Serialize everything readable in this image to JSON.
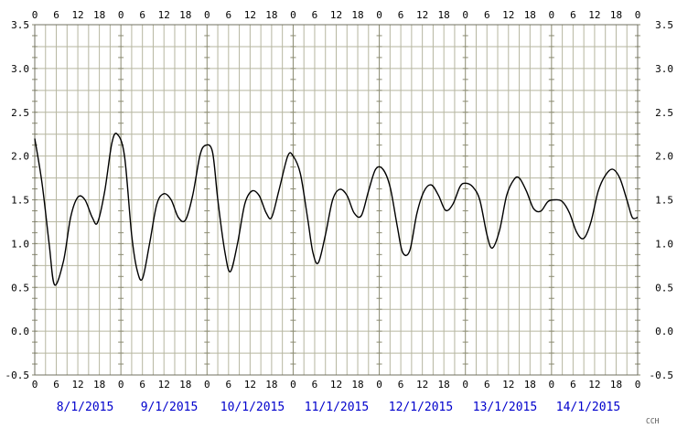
{
  "chart_data": {
    "type": "line",
    "hour_tick_labels": [
      "0",
      "6",
      "12",
      "18"
    ],
    "y_tick_labels": [
      "3.5",
      "3.0",
      "2.5",
      "2.0",
      "1.5",
      "1.0",
      "0.5",
      "0.0",
      "-0.5"
    ],
    "ylim": [
      -0.5,
      3.5
    ],
    "x_range": [
      "2015-01-08T00:00",
      "2015-01-15T00:00"
    ],
    "dates": [
      "8/1/2015",
      "9/1/2015",
      "10/1/2015",
      "11/1/2015",
      "12/1/2015",
      "13/1/2015",
      "14/1/2015"
    ],
    "grid": true,
    "series": [
      {
        "color": "#000000",
        "x": [
          "2015-01-08T00:00",
          "2015-01-08T02:00",
          "2015-01-08T04:00",
          "2015-01-08T05:30",
          "2015-01-08T08:00",
          "2015-01-08T10:00",
          "2015-01-08T12:00",
          "2015-01-08T14:00",
          "2015-01-08T16:00",
          "2015-01-08T17:30",
          "2015-01-08T19:30",
          "2015-01-08T21:30",
          "2015-01-08T23:00",
          "2015-01-09T01:00",
          "2015-01-09T03:00",
          "2015-01-09T04:30",
          "2015-01-09T06:00",
          "2015-01-09T08:00",
          "2015-01-09T10:00",
          "2015-01-09T12:00",
          "2015-01-09T14:00",
          "2015-01-09T16:00",
          "2015-01-09T18:00",
          "2015-01-09T20:00",
          "2015-01-09T22:00",
          "2015-01-09T23:30",
          "2015-01-10T01:30",
          "2015-01-10T03:00",
          "2015-01-10T05:00",
          "2015-01-10T06:30",
          "2015-01-10T08:30",
          "2015-01-10T10:30",
          "2015-01-10T12:30",
          "2015-01-10T14:30",
          "2015-01-10T16:30",
          "2015-01-10T18:00",
          "2015-01-10T20:00",
          "2015-01-10T22:30",
          "2015-01-11T00:00",
          "2015-01-11T02:00",
          "2015-01-11T04:00",
          "2015-01-11T05:30",
          "2015-01-11T07:00",
          "2015-01-11T09:00",
          "2015-01-11T11:00",
          "2015-01-11T13:00",
          "2015-01-11T15:00",
          "2015-01-11T17:00",
          "2015-01-11T19:00",
          "2015-01-11T21:00",
          "2015-01-11T23:00",
          "2015-01-12T01:00",
          "2015-01-12T03:00",
          "2015-01-12T05:00",
          "2015-01-12T06:30",
          "2015-01-12T08:30",
          "2015-01-12T10:30",
          "2015-01-12T12:30",
          "2015-01-12T14:30",
          "2015-01-12T16:30",
          "2015-01-12T18:30",
          "2015-01-12T20:30",
          "2015-01-12T22:30",
          "2015-01-13T00:00",
          "2015-01-13T02:00",
          "2015-01-13T04:00",
          "2015-01-13T06:00",
          "2015-01-13T07:30",
          "2015-01-13T09:30",
          "2015-01-13T11:30",
          "2015-01-13T13:30",
          "2015-01-13T15:00",
          "2015-01-13T17:00",
          "2015-01-13T19:00",
          "2015-01-13T21:00",
          "2015-01-13T23:00",
          "2015-01-14T01:00",
          "2015-01-14T03:00",
          "2015-01-14T05:00",
          "2015-01-14T07:00",
          "2015-01-14T09:00",
          "2015-01-14T11:00",
          "2015-01-14T13:00",
          "2015-01-14T15:00",
          "2015-01-14T17:00",
          "2015-01-14T19:00",
          "2015-01-14T21:00",
          "2015-01-14T22:30",
          "2015-01-15T00:00"
        ],
        "y": [
          2.2,
          1.7,
          1.0,
          0.53,
          0.8,
          1.3,
          1.53,
          1.5,
          1.3,
          1.24,
          1.6,
          2.15,
          2.25,
          2.0,
          1.1,
          0.7,
          0.6,
          1.0,
          1.45,
          1.57,
          1.5,
          1.3,
          1.27,
          1.55,
          2.0,
          2.12,
          2.05,
          1.5,
          0.9,
          0.68,
          1.0,
          1.45,
          1.6,
          1.55,
          1.35,
          1.3,
          1.6,
          2.0,
          2.0,
          1.8,
          1.3,
          0.9,
          0.78,
          1.1,
          1.5,
          1.62,
          1.55,
          1.35,
          1.32,
          1.6,
          1.85,
          1.85,
          1.65,
          1.2,
          0.9,
          0.92,
          1.35,
          1.6,
          1.67,
          1.55,
          1.38,
          1.45,
          1.65,
          1.69,
          1.65,
          1.5,
          1.1,
          0.95,
          1.15,
          1.55,
          1.73,
          1.75,
          1.6,
          1.4,
          1.37,
          1.48,
          1.5,
          1.48,
          1.35,
          1.13,
          1.06,
          1.25,
          1.6,
          1.78,
          1.85,
          1.75,
          1.5,
          1.3,
          1.3
        ]
      }
    ]
  },
  "footer": {
    "credit": "CCH"
  }
}
